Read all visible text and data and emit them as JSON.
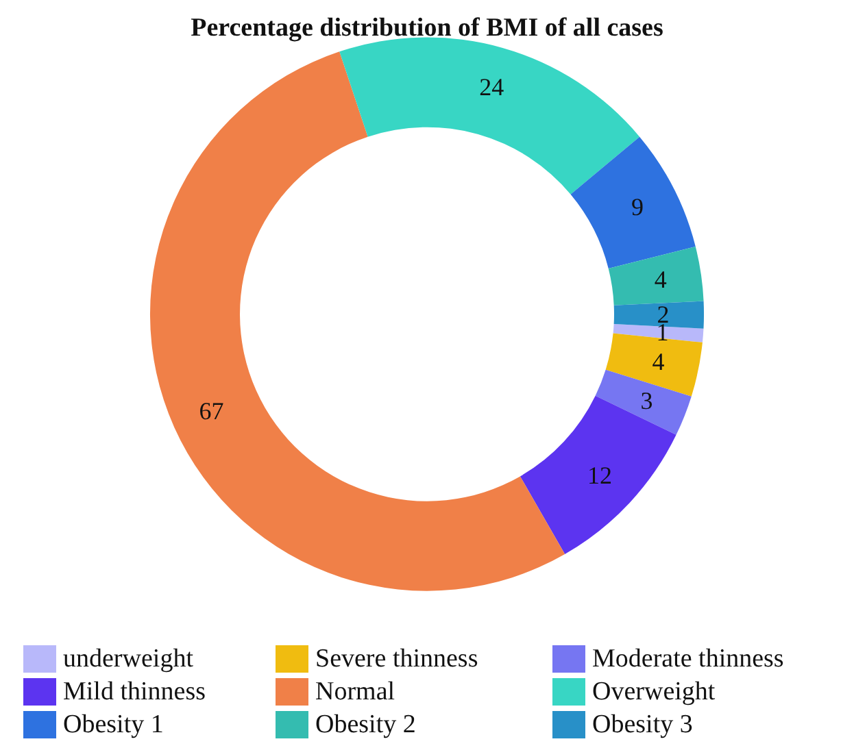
{
  "chart_data": {
    "type": "donut",
    "title": "Percentage distribution of BMI of all cases",
    "categories": [
      "underweight",
      "Severe thinness",
      "Moderate thinness",
      "Mild thinness",
      "Normal",
      "Overweight",
      "Obesity 1",
      "Obesity 2",
      "Obesity 3"
    ],
    "values": [
      1,
      4,
      3,
      12,
      67,
      24,
      9,
      4,
      2
    ],
    "colors": [
      "#b8b8fa",
      "#f0bc10",
      "#7676f2",
      "#5c34f0",
      "#f08048",
      "#38d6c4",
      "#2e72e0",
      "#34bcb0",
      "#2890c8"
    ],
    "data_labels": true,
    "legend": "bottom"
  }
}
